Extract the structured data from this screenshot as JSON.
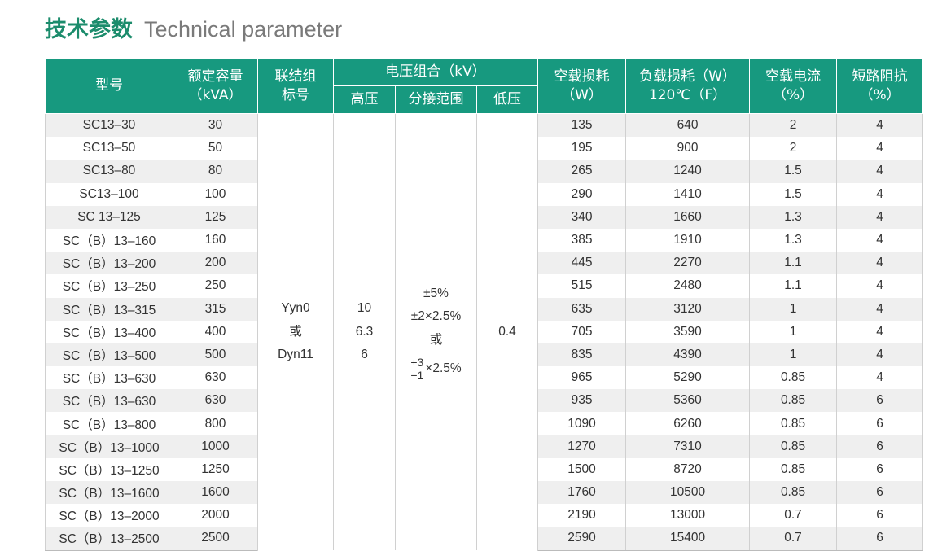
{
  "header": {
    "title": "技术参数",
    "subtitle": "Technical parameter"
  },
  "table": {
    "head": [
      {
        "lines": [
          "型号"
        ]
      },
      {
        "lines": [
          "额定容量",
          "（kVA）"
        ]
      },
      {
        "lines": [
          "联结组",
          "标号"
        ]
      },
      {
        "lines": [
          "电压组合（kV）"
        ]
      },
      {
        "lines": [
          "空载损耗",
          "（W）"
        ]
      },
      {
        "lines": [
          "负载损耗（W）",
          "120℃（F）"
        ]
      },
      {
        "lines": [
          "空载电流",
          "（%）"
        ]
      },
      {
        "lines": [
          "短路阻抗",
          "（%）"
        ]
      }
    ],
    "subhead": [
      "高压",
      "分接范围",
      "低压"
    ],
    "rows": [
      [
        "SC13–30",
        "30",
        "135",
        "640",
        "2",
        "4"
      ],
      [
        "SC13–50",
        "50",
        "195",
        "900",
        "2",
        "4"
      ],
      [
        "SC13–80",
        "80",
        "265",
        "1240",
        "1.5",
        "4"
      ],
      [
        "SC13–100",
        "100",
        "290",
        "1410",
        "1.5",
        "4"
      ],
      [
        "SC 13–125",
        "125",
        "340",
        "1660",
        "1.3",
        "4"
      ],
      [
        "SC（B）13–160",
        "160",
        "385",
        "1910",
        "1.3",
        "4"
      ],
      [
        "SC（B）13–200",
        "200",
        "445",
        "2270",
        "1.1",
        "4"
      ],
      [
        "SC（B）13–250",
        "250",
        "515",
        "2480",
        "1.1",
        "4"
      ],
      [
        "SC（B）13–315",
        "315",
        "635",
        "3120",
        "1",
        "4"
      ],
      [
        "SC（B）13–400",
        "400",
        "705",
        "3590",
        "1",
        "4"
      ],
      [
        "SC（B）13–500",
        "500",
        "835",
        "4390",
        "1",
        "4"
      ],
      [
        "SC（B）13–630",
        "630",
        "965",
        "5290",
        "0.85",
        "4"
      ],
      [
        "SC（B）13–630",
        "630",
        "935",
        "5360",
        "0.85",
        "6"
      ],
      [
        "SC（B）13–800",
        "800",
        "1090",
        "6260",
        "0.85",
        "6"
      ],
      [
        "SC（B）13–1000",
        "1000",
        "1270",
        "7310",
        "0.85",
        "6"
      ],
      [
        "SC（B）13–1250",
        "1250",
        "1500",
        "8720",
        "0.85",
        "6"
      ],
      [
        "SC（B）13–1600",
        "1600",
        "1760",
        "10500",
        "0.85",
        "6"
      ],
      [
        "SC（B）13–2000",
        "2000",
        "2190",
        "13000",
        "0.7",
        "6"
      ],
      [
        "SC（B）13–2500",
        "2500",
        "2590",
        "15400",
        "0.7",
        "6"
      ]
    ],
    "merged": {
      "connection": [
        "Yyn0",
        "或",
        "Dyn11"
      ],
      "high_voltage": [
        "10",
        "6.3",
        "6"
      ],
      "tap_range": [
        "±5%",
        "±2×2.5%",
        "或"
      ],
      "tap_range_asym": {
        "upper": "+3",
        "lower": "−1",
        "text": "×2.5%"
      },
      "low_voltage": "0.4"
    }
  }
}
